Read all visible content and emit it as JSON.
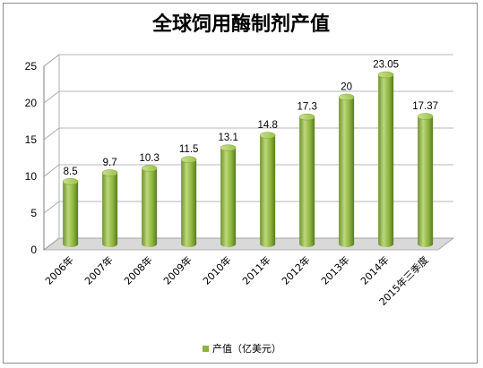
{
  "chart_data": {
    "type": "bar",
    "title": "全球饲用酶制剂产值",
    "categories": [
      "2006年",
      "2007年",
      "2008年",
      "2009年",
      "2010年",
      "2011年",
      "2012年",
      "2013年",
      "2014年",
      "2015年三季度"
    ],
    "series": [
      {
        "name": "产值（亿美元）",
        "values": [
          8.5,
          9.7,
          10.3,
          11.5,
          13.1,
          14.8,
          17.3,
          20,
          23.05,
          17.37
        ],
        "color": "#8db33e"
      }
    ],
    "data_labels": [
      "8.5",
      "9.7",
      "10.3",
      "11.5",
      "13.1",
      "14.8",
      "17.3",
      "20",
      "23.05",
      "17.37"
    ],
    "yticks": [
      "0",
      "5",
      "10",
      "15",
      "20",
      "25"
    ],
    "ylim": [
      0,
      25
    ],
    "ystep": 5,
    "grid": true,
    "legend_position": "bottom"
  },
  "colors": {
    "bar_light": "#bcd87a",
    "bar_main": "#8db33e",
    "bar_dark": "#5a7a22",
    "gridline": "#a0a0a0",
    "wall": "#ffffff",
    "floor": "#d9d9d9"
  }
}
